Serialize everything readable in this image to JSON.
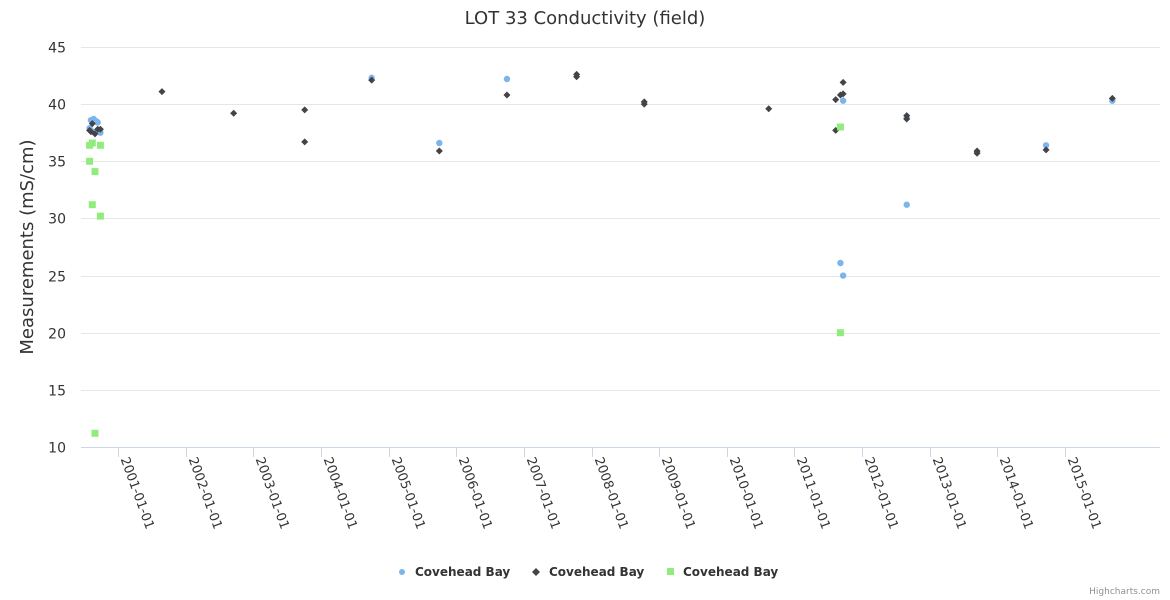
{
  "chart_data": {
    "type": "scatter",
    "title": "LOT 33 Conductivity (field)",
    "xlabel": "",
    "ylabel": "Measurements (mS/cm)",
    "ylim": [
      10,
      45
    ],
    "yticks": [
      10,
      15,
      20,
      25,
      30,
      35,
      40,
      45
    ],
    "xlim": [
      2000.45,
      2015.65
    ],
    "xticks": [
      {
        "value": 2001,
        "label": "2001-01-01"
      },
      {
        "value": 2002,
        "label": "2002-01-01"
      },
      {
        "value": 2003,
        "label": "2003-01-01"
      },
      {
        "value": 2004,
        "label": "2004-01-01"
      },
      {
        "value": 2005,
        "label": "2005-01-01"
      },
      {
        "value": 2006,
        "label": "2006-01-01"
      },
      {
        "value": 2007,
        "label": "2007-01-01"
      },
      {
        "value": 2008,
        "label": "2008-01-01"
      },
      {
        "value": 2009,
        "label": "2009-01-01"
      },
      {
        "value": 2010,
        "label": "2010-01-01"
      },
      {
        "value": 2011,
        "label": "2011-01-01"
      },
      {
        "value": 2012,
        "label": "2012-01-01"
      },
      {
        "value": 2013,
        "label": "2013-01-01"
      },
      {
        "value": 2014,
        "label": "2014-01-01"
      },
      {
        "value": 2015,
        "label": "2015-01-01"
      }
    ],
    "grid": true,
    "legend_position": "bottom-center",
    "series": [
      {
        "name": "Covehead Bay",
        "marker": "circle",
        "color": "#7cb5ec",
        "points": [
          [
            2000.6,
            38.6
          ],
          [
            2000.64,
            38.7
          ],
          [
            2000.68,
            38.5
          ],
          [
            2000.7,
            38.4
          ],
          [
            2000.58,
            37.9
          ],
          [
            2000.74,
            37.5
          ],
          [
            2000.62,
            37.6
          ],
          [
            2004.75,
            42.3
          ],
          [
            2005.75,
            36.6
          ],
          [
            2006.75,
            42.2
          ],
          [
            2011.72,
            40.3
          ],
          [
            2011.68,
            26.1
          ],
          [
            2011.72,
            25.0
          ],
          [
            2012.66,
            38.8
          ],
          [
            2012.66,
            31.2
          ],
          [
            2013.7,
            35.8
          ],
          [
            2014.72,
            36.4
          ],
          [
            2015.7,
            40.3
          ]
        ]
      },
      {
        "name": "Covehead Bay",
        "marker": "diamond",
        "color": "#434348",
        "points": [
          [
            2000.58,
            37.7
          ],
          [
            2000.62,
            38.3
          ],
          [
            2000.66,
            37.4
          ],
          [
            2000.7,
            37.8
          ],
          [
            2000.74,
            37.8
          ],
          [
            2000.6,
            37.6
          ],
          [
            2001.65,
            41.1
          ],
          [
            2002.71,
            39.2
          ],
          [
            2003.76,
            39.5
          ],
          [
            2003.76,
            36.7
          ],
          [
            2004.75,
            42.1
          ],
          [
            2005.75,
            35.9
          ],
          [
            2006.75,
            40.8
          ],
          [
            2007.78,
            42.6
          ],
          [
            2007.78,
            42.4
          ],
          [
            2008.78,
            40.2
          ],
          [
            2008.78,
            40.0
          ],
          [
            2010.62,
            39.6
          ],
          [
            2011.72,
            41.9
          ],
          [
            2011.68,
            40.8
          ],
          [
            2011.72,
            40.9
          ],
          [
            2011.61,
            40.4
          ],
          [
            2011.61,
            37.7
          ],
          [
            2012.66,
            39.0
          ],
          [
            2012.66,
            38.7
          ],
          [
            2013.7,
            35.9
          ],
          [
            2013.7,
            35.7
          ],
          [
            2014.72,
            36.0
          ],
          [
            2015.7,
            40.5
          ]
        ]
      },
      {
        "name": "Covehead Bay",
        "marker": "square",
        "color": "#90ed7d",
        "points": [
          [
            2000.58,
            36.4
          ],
          [
            2000.62,
            36.6
          ],
          [
            2000.74,
            36.4
          ],
          [
            2000.58,
            35.0
          ],
          [
            2000.66,
            34.1
          ],
          [
            2000.62,
            31.2
          ],
          [
            2000.74,
            30.2
          ],
          [
            2000.66,
            11.2
          ],
          [
            2011.68,
            38.0
          ],
          [
            2011.68,
            20.0
          ]
        ]
      }
    ]
  },
  "legend": {
    "items": [
      {
        "label": "Covehead Bay",
        "icon": "circle-marker-icon"
      },
      {
        "label": "Covehead Bay",
        "icon": "diamond-marker-icon"
      },
      {
        "label": "Covehead Bay",
        "icon": "square-marker-icon"
      }
    ]
  },
  "credits": "Highcharts.com",
  "colors": {
    "grid": "#e6e6e6",
    "axis": "#ccd6eb",
    "text": "#333333"
  }
}
